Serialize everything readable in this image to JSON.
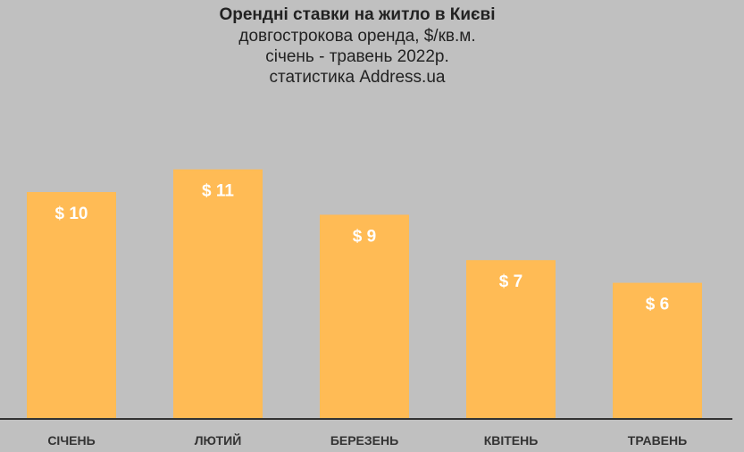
{
  "chart_data": {
    "type": "bar",
    "title": "Орендні ставки на житло в Києві",
    "subtitle_lines": [
      "довгострокова оренда, $/кв.м.",
      "січень - травень 2022р.",
      "статистика Address.ua"
    ],
    "categories": [
      "СІЧЕНЬ",
      "ЛЮТИЙ",
      "БЕРЕЗЕНЬ",
      "КВІТЕНЬ",
      "ТРАВЕНЬ"
    ],
    "values": [
      10,
      11,
      9,
      7,
      6
    ],
    "value_labels": [
      "$ 10",
      "$ 11",
      "$ 9",
      "$ 7",
      "$ 6"
    ],
    "xlabel": "",
    "ylabel": "",
    "ylim": [
      0,
      12
    ],
    "grid": false,
    "legend": "none",
    "colors": {
      "bar": "#ffbb55",
      "value_label": "#ffffff",
      "category_label": "#333333",
      "axis": "#333333",
      "background": "#c0c0c0"
    }
  }
}
